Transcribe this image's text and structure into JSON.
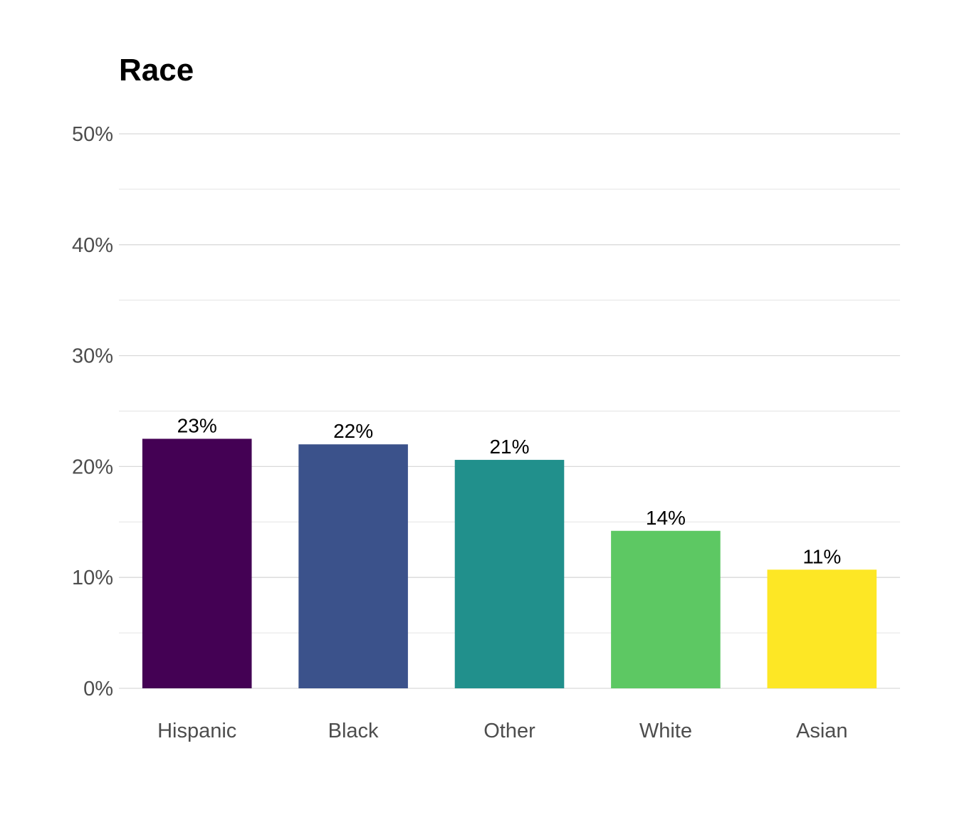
{
  "chart_data": {
    "type": "bar",
    "title": "Race",
    "xlabel": "",
    "ylabel": "",
    "categories": [
      "Hispanic",
      "Black",
      "Other",
      "White",
      "Asian"
    ],
    "values": [
      22.5,
      22.0,
      20.6,
      14.2,
      10.7
    ],
    "data_labels": [
      "23%",
      "22%",
      "21%",
      "14%",
      "11%"
    ],
    "colors": [
      "#440154",
      "#3B528B",
      "#21908C",
      "#5DC863",
      "#FDE725"
    ],
    "ylim": [
      0,
      50
    ],
    "yticks": [
      0,
      10,
      20,
      30,
      40,
      50
    ],
    "ytick_labels": [
      "0%",
      "10%",
      "20%",
      "30%",
      "40%",
      "50%"
    ],
    "grid": true,
    "legend": "none"
  }
}
